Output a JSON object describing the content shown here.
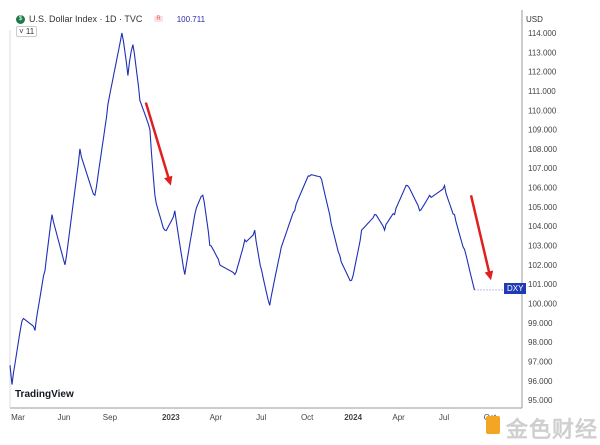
{
  "header": {
    "title": "U.S. Dollar Index · 1D · TVC",
    "badge": "R",
    "last_value": "100.711",
    "collapse": "˅ 11",
    "currency": "USD",
    "brand": "TradingView",
    "symbol_tag": "DXY",
    "watermark": "金色财经"
  },
  "chart_data": {
    "type": "line",
    "title": "U.S. Dollar Index · 1D · TVC",
    "xlabel": "",
    "ylabel": "USD",
    "ylim": [
      94.5,
      114.3
    ],
    "yticks": [
      "95.000",
      "96.000",
      "97.000",
      "98.000",
      "99.000",
      "100.000",
      "101.000",
      "102.000",
      "103.000",
      "104.000",
      "105.000",
      "106.000",
      "107.000",
      "108.000",
      "109.000",
      "110.000",
      "111.000",
      "112.000",
      "113.000",
      "114.000"
    ],
    "xticks": [
      {
        "label": "Mar",
        "date": "2022-03-01"
      },
      {
        "label": "Jun",
        "date": "2022-06-01"
      },
      {
        "label": "Sep",
        "date": "2022-09-01"
      },
      {
        "label": "2023",
        "date": "2023-01-01",
        "bold": true
      },
      {
        "label": "Apr",
        "date": "2023-04-01"
      },
      {
        "label": "Jul",
        "date": "2023-07-01"
      },
      {
        "label": "Oct",
        "date": "2023-10-01"
      },
      {
        "label": "2024",
        "date": "2024-01-01",
        "bold": true
      },
      {
        "label": "Apr",
        "date": "2024-04-01"
      },
      {
        "label": "Jul",
        "date": "2024-07-01"
      },
      {
        "label": "Oct",
        "date": "2024-10-01"
      }
    ],
    "series": [
      {
        "name": "DXY",
        "color": "#1f2fb5",
        "points": [
          [
            "2022-02-13",
            96.8
          ],
          [
            "2022-02-17",
            95.8
          ],
          [
            "2022-03-09",
            99.1
          ],
          [
            "2022-04-04",
            98.6
          ],
          [
            "2022-04-24",
            101.7
          ],
          [
            "2022-05-08",
            104.6
          ],
          [
            "2022-06-03",
            102.0
          ],
          [
            "2022-07-03",
            108.0
          ],
          [
            "2022-08-02",
            105.6
          ],
          [
            "2022-08-28",
            110.3
          ],
          [
            "2022-09-25",
            114.0
          ],
          [
            "2022-10-07",
            111.8
          ],
          [
            "2022-10-17",
            113.4
          ],
          [
            "2022-10-31",
            110.5
          ],
          [
            "2022-11-20",
            109.0
          ],
          [
            "2022-11-30",
            105.6
          ],
          [
            "2022-12-20",
            103.8
          ],
          [
            "2023-01-09",
            104.8
          ],
          [
            "2023-01-29",
            101.5
          ],
          [
            "2023-02-18",
            104.6
          ],
          [
            "2023-03-06",
            105.6
          ],
          [
            "2023-03-20",
            103.0
          ],
          [
            "2023-04-09",
            102.0
          ],
          [
            "2023-05-09",
            101.5
          ],
          [
            "2023-05-29",
            103.3
          ],
          [
            "2023-06-18",
            103.8
          ],
          [
            "2023-07-02",
            101.7
          ],
          [
            "2023-07-18",
            99.9
          ],
          [
            "2023-08-07",
            102.5
          ],
          [
            "2023-09-06",
            104.8
          ],
          [
            "2023-10-06",
            106.6
          ],
          [
            "2023-10-30",
            106.4
          ],
          [
            "2023-11-15",
            104.6
          ],
          [
            "2023-12-05",
            102.5
          ],
          [
            "2023-12-29",
            101.2
          ],
          [
            "2024-01-18",
            103.8
          ],
          [
            "2024-02-13",
            104.6
          ],
          [
            "2024-03-04",
            103.8
          ],
          [
            "2024-03-24",
            104.6
          ],
          [
            "2024-04-19",
            106.1
          ],
          [
            "2024-05-13",
            104.8
          ],
          [
            "2024-06-02",
            105.6
          ],
          [
            "2024-07-02",
            106.1
          ],
          [
            "2024-07-22",
            104.6
          ],
          [
            "2024-08-11",
            102.8
          ],
          [
            "2024-08-31",
            100.7
          ]
        ]
      }
    ],
    "annotations": [
      {
        "type": "arrow",
        "color": "#e02020",
        "from": [
          "2022-11-12",
          110.4
        ],
        "to": [
          "2023-01-01",
          106.1
        ]
      },
      {
        "type": "arrow",
        "color": "#e02020",
        "from": [
          "2024-08-24",
          105.6
        ],
        "to": [
          "2024-10-03",
          101.2
        ]
      }
    ],
    "grid": false,
    "legend": "none"
  }
}
